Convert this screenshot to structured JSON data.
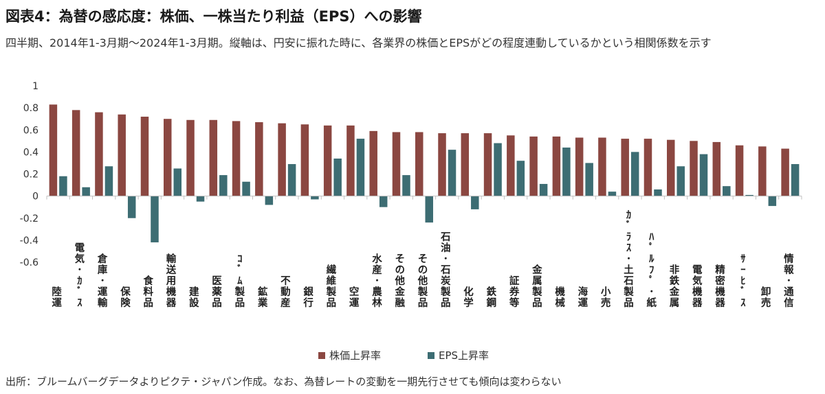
{
  "header": {
    "title": "図表4：為替の感応度：株価、一株当たり利益（EPS）への影響",
    "subtitle": "四半期、2014年1-3月期～2024年1-3月期。縦軸は、円安に振れた時に、各業界の株価とEPSがどの程度連動しているかという相関係数を示す"
  },
  "footer": {
    "source": "出所：ブルームバーグデータよりピクテ・ジャパン作成。なお、為替レートの変動を一期先行させても傾向は変わらない"
  },
  "chart_data": {
    "type": "bar",
    "ylim": [
      -0.6,
      1
    ],
    "yticks": [
      1,
      0.8,
      0.6,
      0.4,
      0.2,
      0,
      -0.2,
      -0.4,
      -0.6
    ],
    "ytick_labels": [
      "1",
      "0.8",
      "0.6",
      "0.4",
      "0.2",
      "0",
      "-0.2",
      "-0.4",
      "-0.6"
    ],
    "grid": false,
    "legend_position": "bottom",
    "categories": [
      "陸運",
      "電気・ガス",
      "倉庫・運輸",
      "保険",
      "食料品",
      "輸送用機器",
      "建設",
      "医薬品",
      "ゴム製品",
      "鉱業",
      "不動産",
      "銀行",
      "繊維製品",
      "空運",
      "水産・農林",
      "その他金融",
      "その他製品",
      "石油・石炭製品",
      "化学",
      "鉄鋼",
      "証券等",
      "金属製品",
      "機械",
      "海運",
      "小売",
      "ガラス・土石製品",
      "パルプ・紙",
      "非鉄金属",
      "電気機器",
      "精密機器",
      "サービス",
      "卸売",
      "情報・通信"
    ],
    "category_labels": [
      "陸運",
      "電気･ｶﾞｽ",
      "倉庫･運輸",
      "保険",
      "食料品",
      "輸送用機器",
      "建設",
      "医薬品",
      "ｺﾞﾑ製品",
      "鉱業",
      "不動産",
      "銀行",
      "繊維製品",
      "空運",
      "水産･農林",
      "その他金融",
      "その他製品",
      "石油･石炭製品",
      "化学",
      "鉄鋼",
      "証券等",
      "金属製品",
      "機械",
      "海運",
      "小売",
      "ｶﾞﾗｽ･土石製品",
      "ﾊﾟﾙﾌﾟ･紙",
      "非鉄金属",
      "電気機器",
      "精密機器",
      "ｻｰﾋﾞｽ",
      "卸売",
      "情報･通信"
    ],
    "series": [
      {
        "name": "株価上昇率",
        "color": "#8B4741",
        "values": [
          0.83,
          0.78,
          0.76,
          0.74,
          0.72,
          0.7,
          0.69,
          0.69,
          0.68,
          0.67,
          0.66,
          0.65,
          0.64,
          0.64,
          0.59,
          0.58,
          0.58,
          0.57,
          0.57,
          0.57,
          0.55,
          0.54,
          0.54,
          0.53,
          0.53,
          0.52,
          0.52,
          0.51,
          0.5,
          0.49,
          0.46,
          0.45,
          0.43
        ]
      },
      {
        "name": "EPS上昇率",
        "color": "#3D6D73",
        "values": [
          0.18,
          0.08,
          0.27,
          -0.2,
          -0.42,
          0.25,
          -0.05,
          0.19,
          0.13,
          -0.08,
          0.29,
          -0.03,
          0.34,
          0.52,
          -0.1,
          0.19,
          -0.24,
          0.42,
          -0.12,
          0.48,
          0.32,
          0.11,
          0.44,
          0.3,
          0.04,
          0.4,
          0.06,
          0.27,
          0.38,
          0.09,
          0.01,
          -0.09,
          0.29
        ]
      }
    ]
  }
}
